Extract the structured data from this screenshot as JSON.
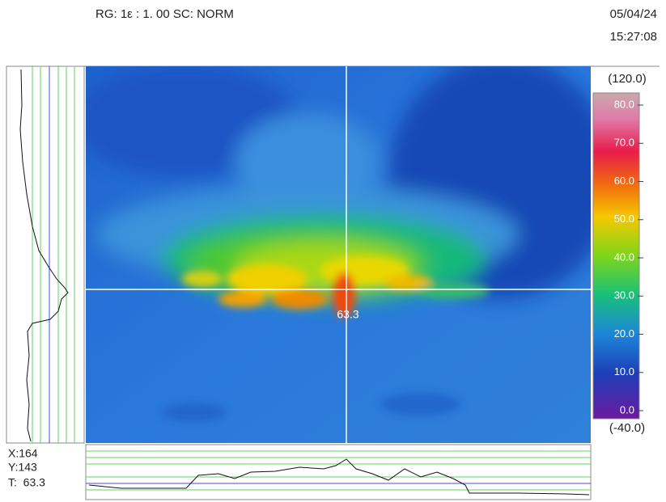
{
  "header": {
    "settings": "RG: 1ε : 1. 00 SC: NORM",
    "date": "05/04/24",
    "time": "15:27:08"
  },
  "color_scale": {
    "max_label": "(120.0)",
    "min_label": "(-40.0)",
    "ticks": [
      "80.0",
      "70.0",
      "60.0",
      "50.0",
      "40.0",
      "30.0",
      "20.0",
      "10.0",
      "0.0"
    ]
  },
  "spot": {
    "label": "63.3"
  },
  "readout": {
    "x": "X:164",
    "y": "Y:143",
    "t": "T:  63.3"
  }
}
